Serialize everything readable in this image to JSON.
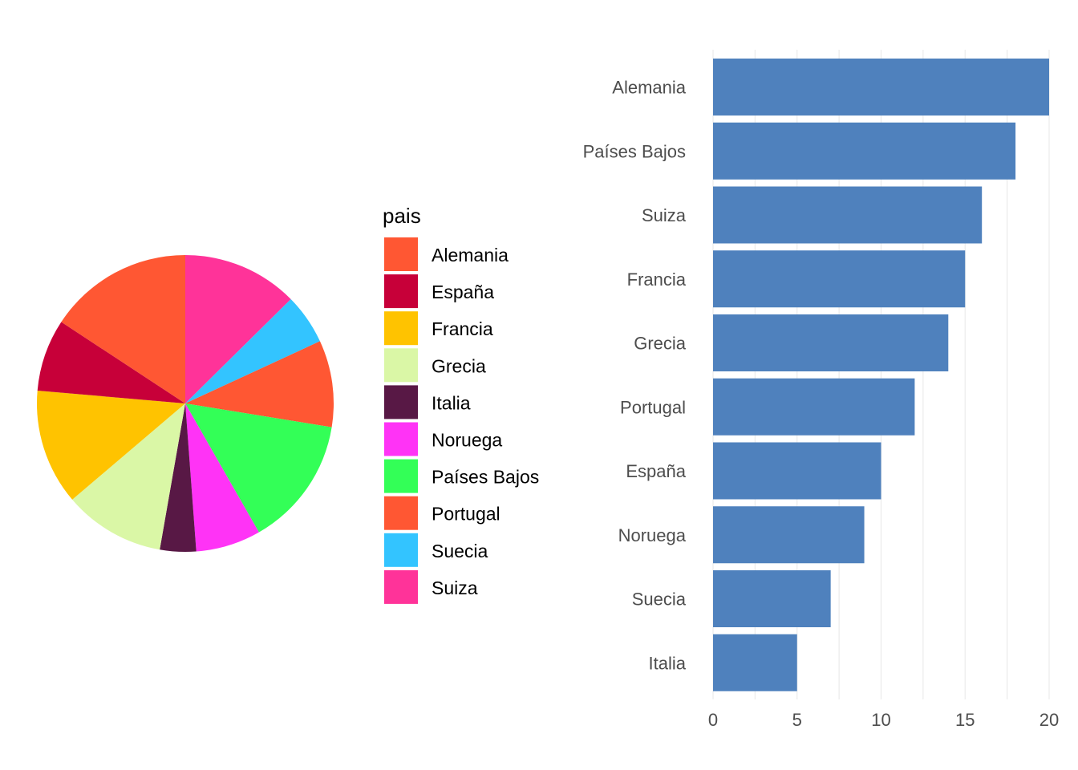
{
  "chart_data": [
    {
      "type": "pie",
      "legend": {
        "title": "pais",
        "placement": "right"
      },
      "slices": [
        {
          "label": "Suiza",
          "value": 8,
          "color": "#FF3399"
        },
        {
          "label": "Suecia",
          "value": 3.5,
          "color": "#33C4FF"
        },
        {
          "label": "Portugal",
          "value": 6,
          "color": "#FF5733"
        },
        {
          "label": "Países Bajos",
          "value": 9,
          "color": "#33FF57"
        },
        {
          "label": "Noruega",
          "value": 4.5,
          "color": "#FF33F6"
        },
        {
          "label": "Italia",
          "value": 2.5,
          "color": "#581845"
        },
        {
          "label": "Grecia",
          "value": 7,
          "color": "#DAF7A6"
        },
        {
          "label": "Francia",
          "value": 8,
          "color": "#FFC300"
        },
        {
          "label": "España",
          "value": 5,
          "color": "#C70039"
        },
        {
          "label": "Alemania",
          "value": 10,
          "color": "#FF5733"
        }
      ],
      "legend_order": [
        "Alemania",
        "España",
        "Francia",
        "Grecia",
        "Italia",
        "Noruega",
        "Países Bajos",
        "Portugal",
        "Suecia",
        "Suiza"
      ]
    },
    {
      "type": "bar",
      "orientation": "horizontal",
      "categories": [
        "Alemania",
        "Países Bajos",
        "Suiza",
        "Francia",
        "Grecia",
        "Portugal",
        "España",
        "Noruega",
        "Suecia",
        "Italia"
      ],
      "values": [
        20,
        18,
        16,
        15,
        14,
        12,
        10,
        9,
        7,
        5
      ],
      "bar_color": "#4F81BD",
      "xlim": [
        0,
        20
      ],
      "xticks": [
        0,
        5,
        10,
        15,
        20
      ],
      "grid": true
    }
  ]
}
